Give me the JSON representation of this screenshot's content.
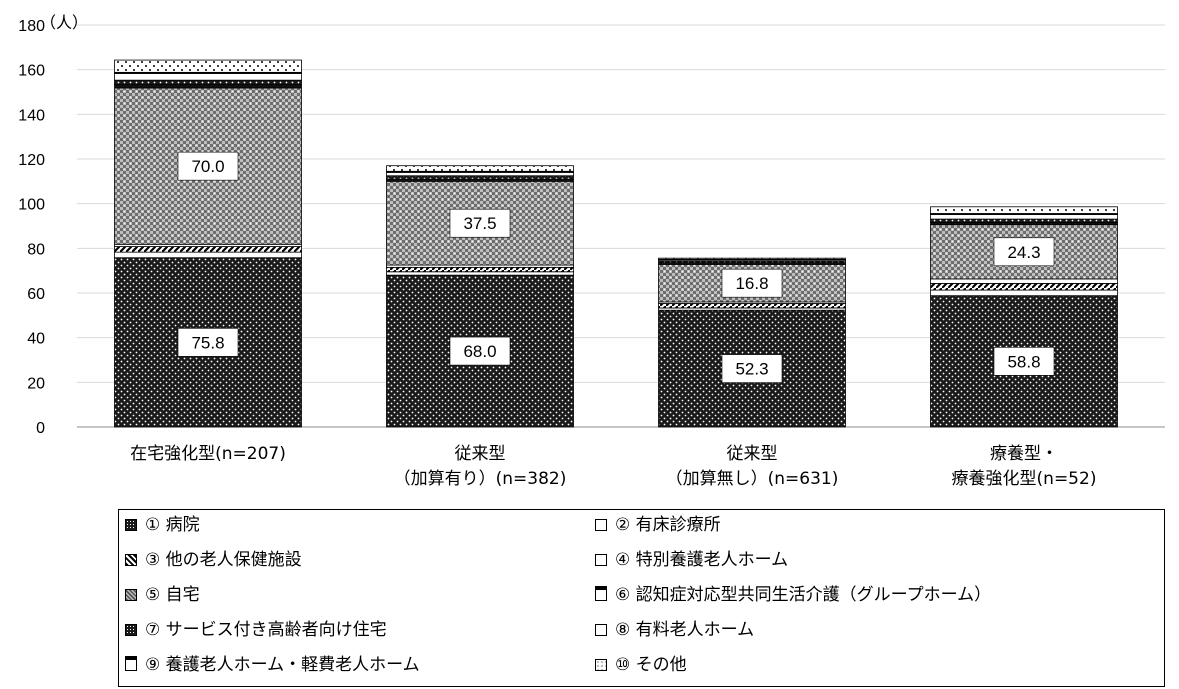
{
  "chart_data": {
    "type": "bar",
    "stacked": true,
    "unit_label": "（人）",
    "ylim": [
      0,
      180
    ],
    "yticks": [
      "0",
      "20",
      "40",
      "60",
      "80",
      "100",
      "120",
      "140",
      "160",
      "180"
    ],
    "grid": true,
    "categories": [
      [
        "在宅強化型(n=207)"
      ],
      [
        "従来型",
        "（加算有り）(n=382)"
      ],
      [
        "従来型",
        "（加算無し）(n=631)"
      ],
      [
        "療養型・",
        "療養強化型(n=52)"
      ]
    ],
    "series": [
      {
        "name": "① 病院",
        "values": [
          75.8,
          68.0,
          52.3,
          58.8
        ],
        "pattern": "dots-dark"
      },
      {
        "name": "② 有床診療所",
        "values": [
          2.5,
          1.5,
          1.0,
          2.5
        ],
        "pattern": "white"
      },
      {
        "name": "③ 他の老人保健施設",
        "values": [
          2.5,
          2.0,
          2.0,
          3.0
        ],
        "pattern": "diagonal"
      },
      {
        "name": "④ 特別養護老人ホーム",
        "values": [
          1.0,
          1.0,
          0.7,
          2.0
        ],
        "pattern": "white"
      },
      {
        "name": "⑤ 自宅",
        "values": [
          70.0,
          37.5,
          16.8,
          24.3
        ],
        "pattern": "checker"
      },
      {
        "name": "⑥ 認知症対応型共同生活介護（グループホーム）",
        "values": [
          1.5,
          1.0,
          0.8,
          1.0
        ],
        "pattern": "dark"
      },
      {
        "name": "⑦ サービス付き高齢者向け住宅",
        "values": [
          2.0,
          1.5,
          0.8,
          1.5
        ],
        "pattern": "dots-dark"
      },
      {
        "name": "⑧ 有料老人ホーム",
        "values": [
          3.0,
          1.5,
          0.5,
          2.0
        ],
        "pattern": "white"
      },
      {
        "name": "⑨ 養護老人ホーム・軽費老人ホーム",
        "values": [
          0.5,
          0.5,
          0.2,
          0.5
        ],
        "pattern": "dark"
      },
      {
        "name": "⑩ その他",
        "values": [
          5.5,
          2.5,
          0.5,
          3.0
        ],
        "pattern": "dots-light"
      }
    ],
    "data_labels": [
      {
        "series_index": 0,
        "values": [
          "75.8",
          "68.0",
          "52.3",
          "58.8"
        ]
      },
      {
        "series_index": 4,
        "values": [
          "70.0",
          "37.5",
          "16.8",
          "24.3"
        ]
      }
    ],
    "legend": {
      "position": "bottom",
      "columns": 2
    }
  }
}
